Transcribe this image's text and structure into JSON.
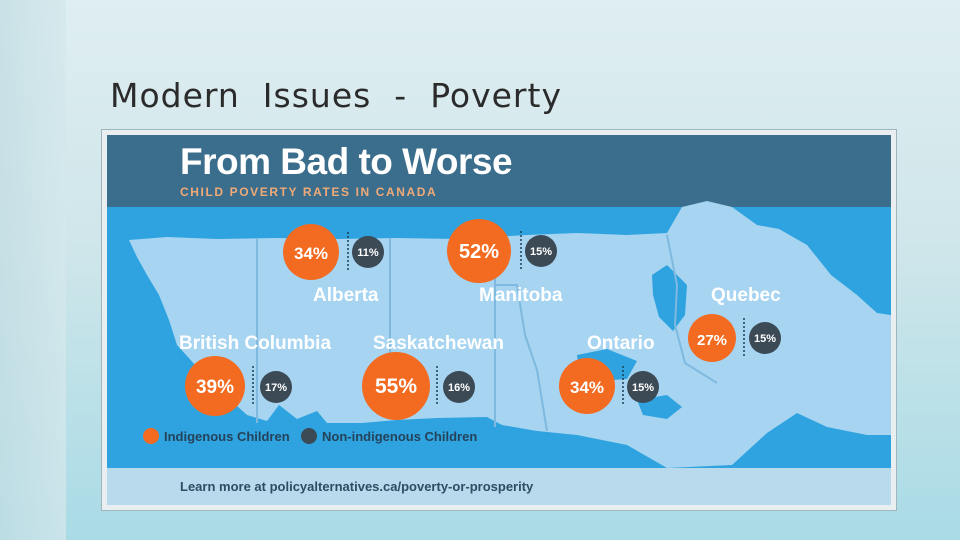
{
  "slide": {
    "title": "Modern  Issues  -  Poverty"
  },
  "chart_data": {
    "type": "bar",
    "title": "From Bad to Worse",
    "subtitle": "CHILD POVERTY RATES IN CANADA",
    "categories": [
      "British Columbia",
      "Alberta",
      "Saskatchewan",
      "Manitoba",
      "Ontario",
      "Quebec"
    ],
    "series": [
      {
        "name": "Indigenous Children",
        "color": "#f26b21",
        "values": [
          39,
          34,
          55,
          52,
          34,
          27
        ]
      },
      {
        "name": "Non-indigenous Children",
        "color": "#3c4a56",
        "values": [
          17,
          11,
          16,
          15,
          15,
          15
        ]
      }
    ],
    "value_suffix": "%",
    "legend": {
      "indigenous": "Indigenous Children",
      "non_indigenous": "Non-indigenous Children",
      "position": "bottom-left"
    },
    "footer": "Learn more at policyalternatives.ca/poverty-or-prosperity"
  },
  "colors": {
    "ocean": "#2fa3df",
    "land": "#a6d4f1",
    "header": "#3b6d8c",
    "orange": "#f26b21",
    "dark": "#3c4a56"
  }
}
